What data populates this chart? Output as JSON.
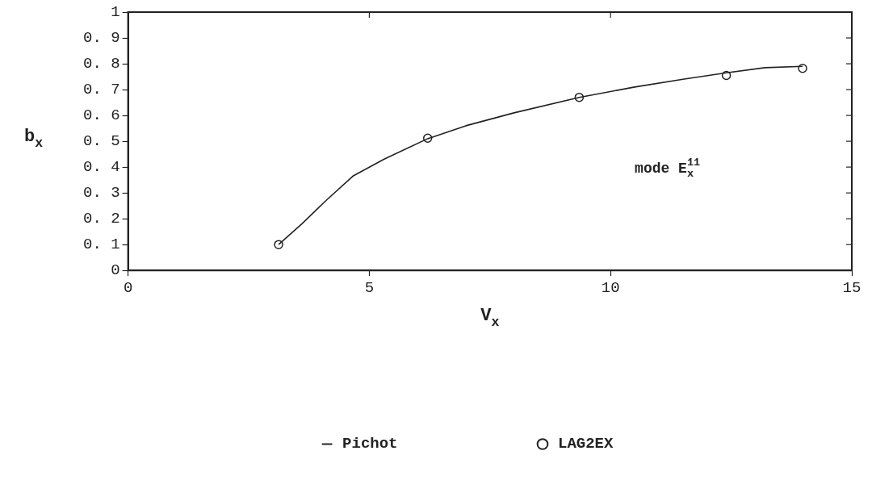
{
  "chart_data": {
    "type": "line",
    "xlabel": "V$_{x}$",
    "ylabel": "b$_{x}$",
    "annotations": [
      "mode E$_{x}$$^{11}$"
    ],
    "series": [
      {
        "name": "Pichot",
        "type": "line",
        "color": "#222222",
        "marker": "none",
        "line_style": "solid",
        "x": [
          3.12,
          3.6,
          4.1,
          4.66,
          5.3,
          6.21,
          7.0,
          8.0,
          9.35,
          10.5,
          11.5,
          12.4,
          13.2,
          13.98
        ],
        "values": [
          0.1,
          0.18,
          0.27,
          0.365,
          0.43,
          0.51,
          0.56,
          0.61,
          0.67,
          0.71,
          0.74,
          0.765,
          0.785,
          0.79
        ]
      },
      {
        "name": "LAG2EX",
        "type": "scatter",
        "color": "#222222",
        "marker": "circle",
        "x": [
          3.12,
          6.21,
          9.35,
          12.4,
          13.98
        ],
        "values": [
          0.1,
          0.512,
          0.67,
          0.755,
          0.782
        ]
      }
    ],
    "xlim": [
      0,
      15
    ],
    "xticks": [
      0,
      5,
      10,
      15
    ],
    "ylim": [
      0,
      1
    ],
    "yticks": [
      0,
      {
        "value": 0.1,
        "label": "0. 1"
      },
      {
        "value": 0.2,
        "label": "0. 2"
      },
      {
        "value": 0.3,
        "label": "0. 3"
      },
      {
        "value": 0.4,
        "label": "0. 4"
      },
      {
        "value": 0.5,
        "label": "0. 5"
      },
      {
        "value": 0.6,
        "label": "0. 6"
      },
      {
        "value": 0.7,
        "label": "0. 7"
      },
      {
        "value": 0.8,
        "label": "0. 8"
      },
      {
        "value": 0.9,
        "label": "0. 9"
      },
      1
    ],
    "grid": false,
    "legend": "bottom"
  }
}
